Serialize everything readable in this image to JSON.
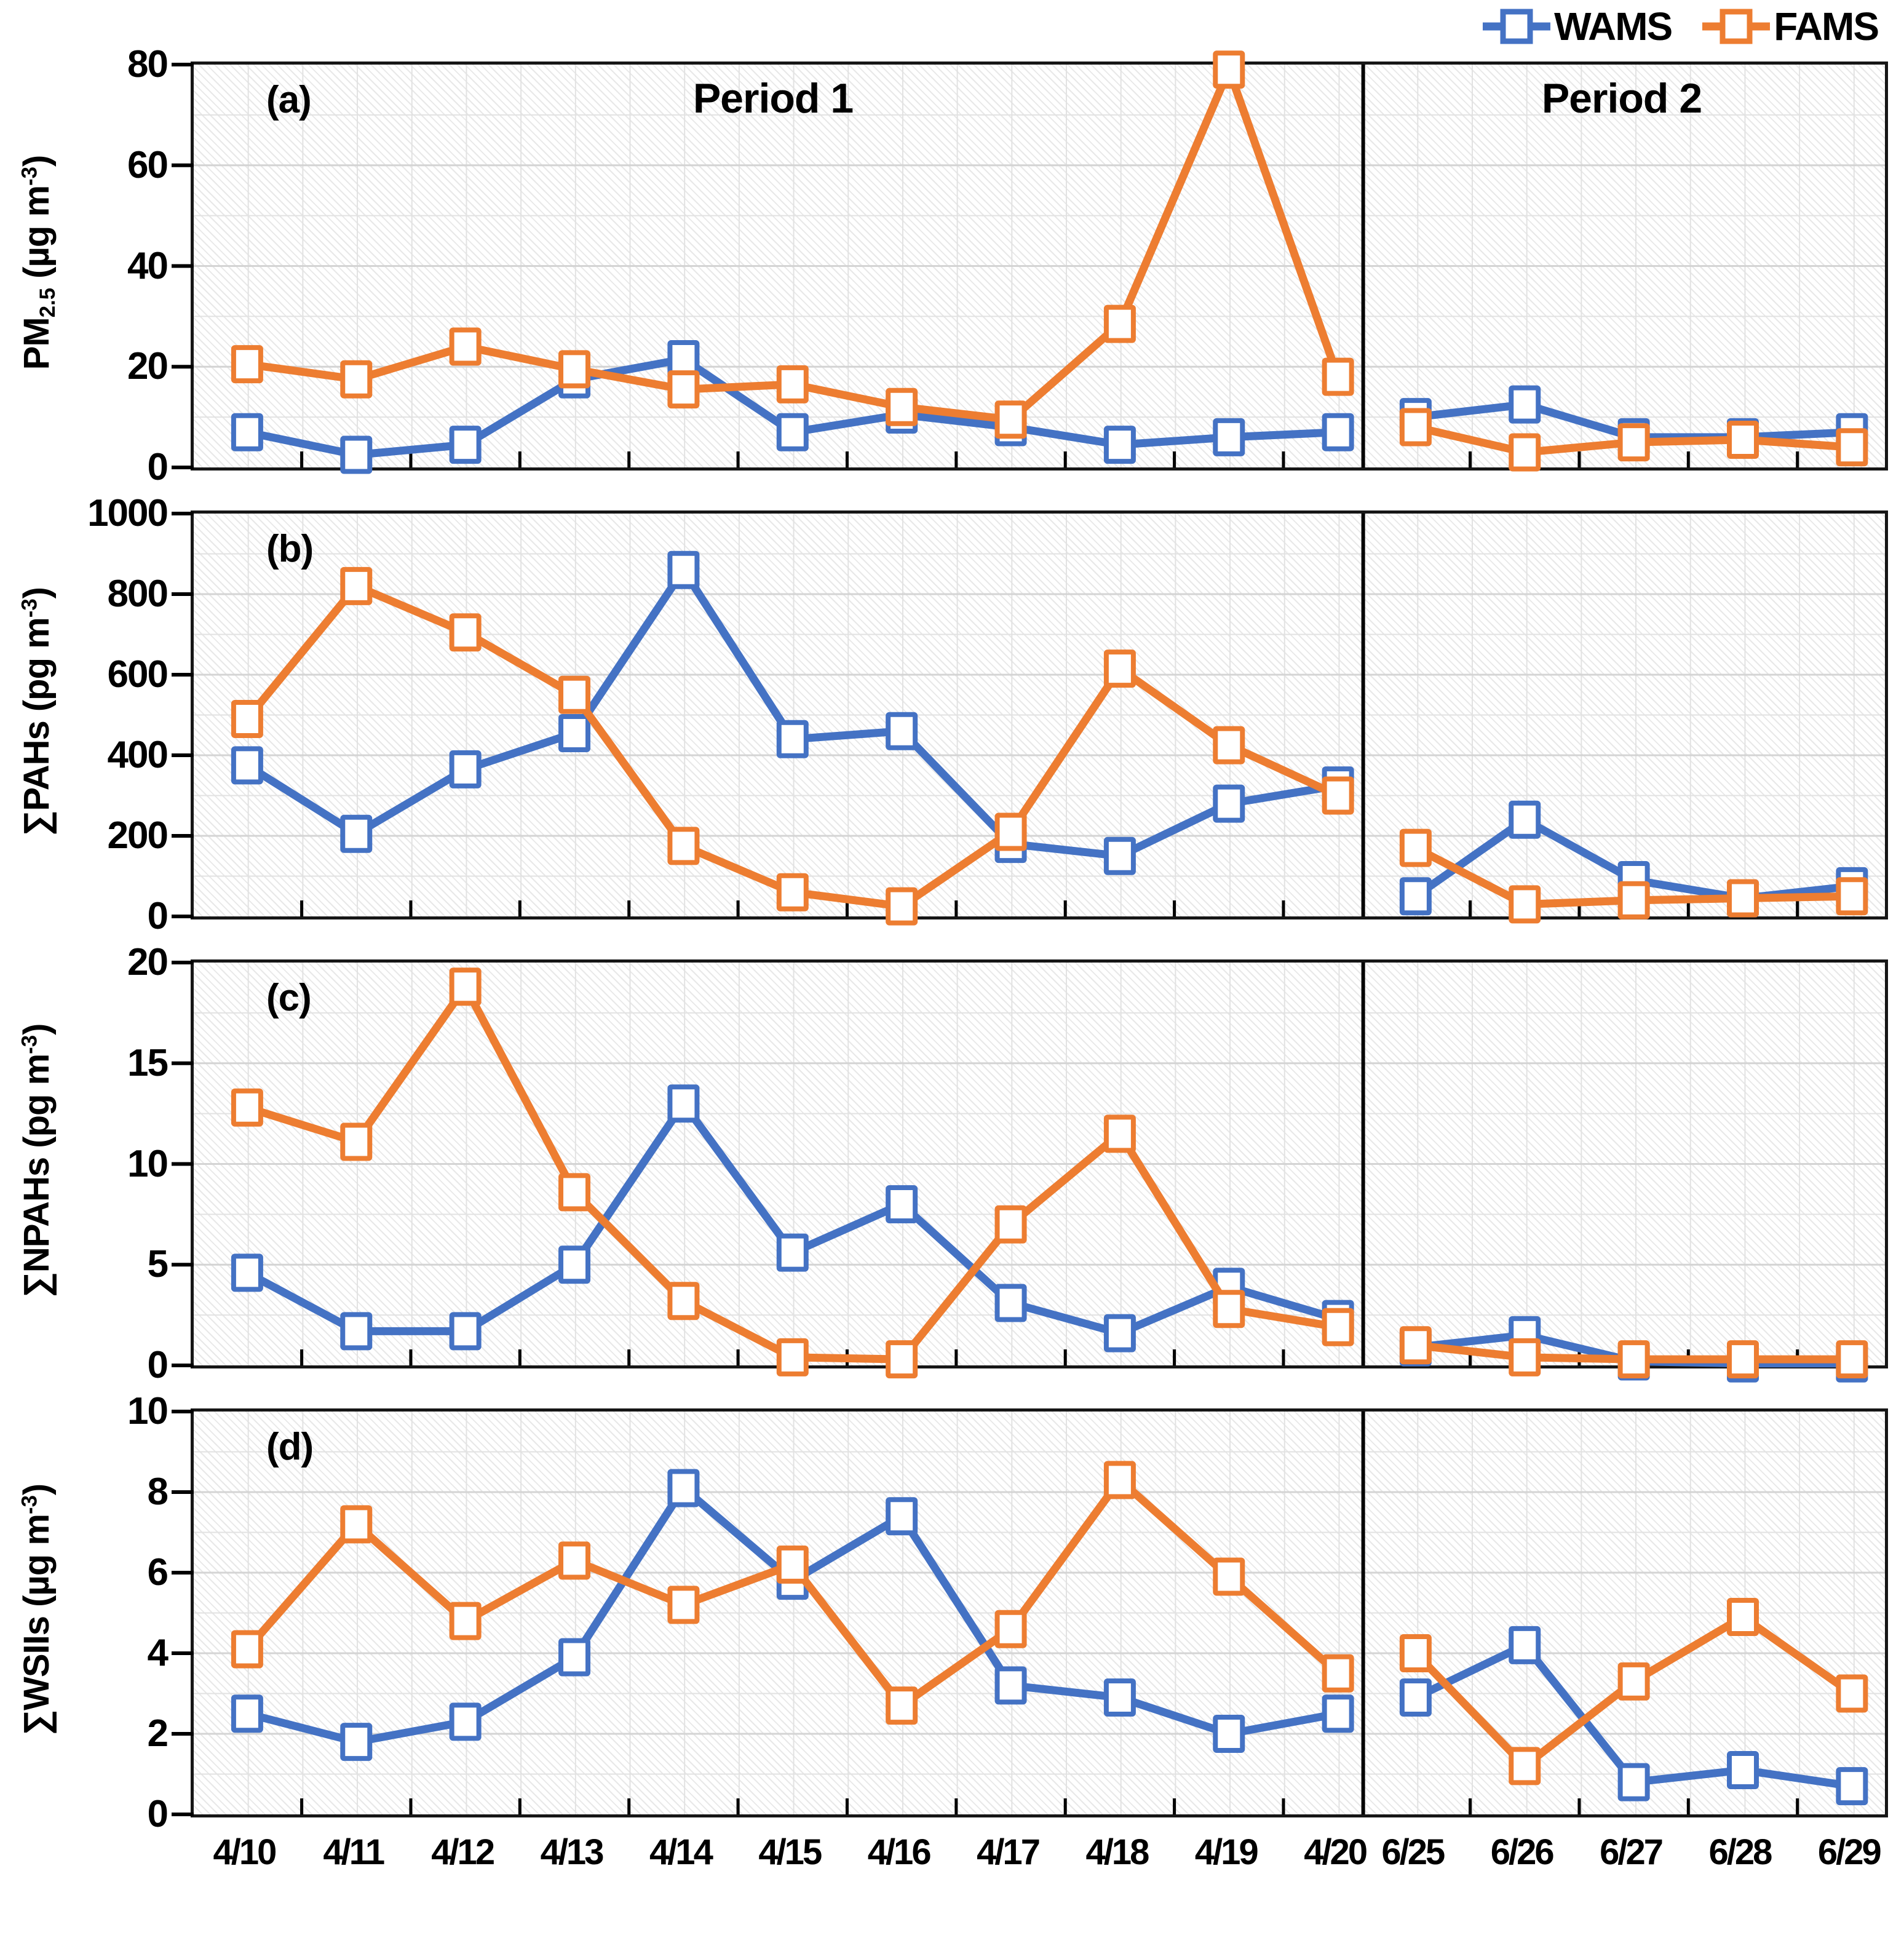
{
  "figure": {
    "type": "multi-panel line chart",
    "period_labels": {
      "period1": "Period 1",
      "period2": "Period 2"
    }
  },
  "colors": {
    "wams": "#4472C4",
    "fams": "#ED7D31",
    "grid_major": "#D4D4D4",
    "grid_minor": "#E2E2E2",
    "axis": "#161616",
    "text": "#000000"
  },
  "legend": {
    "items": [
      {
        "label": "WAMS",
        "series": "wams"
      },
      {
        "label": "FAMS",
        "series": "fams"
      }
    ]
  },
  "chart_data": [
    {
      "type": "line",
      "panel_letter": "(a)",
      "ylabel": "PM2.5 (ug m-3)",
      "ylabel_parts": {
        "main": "PM",
        "sub": "2.5",
        "unit_pre": " (µg m",
        "unit_sup": "-3",
        "unit_post": ")"
      },
      "ylim": [
        0,
        80
      ],
      "yticks": [
        0,
        20,
        40,
        60,
        80
      ],
      "grid": "major+minor",
      "legend_position": "top-right",
      "categories": [
        "4/10",
        "4/11",
        "4/12",
        "4/13",
        "4/14",
        "4/15",
        "4/16",
        "4/17",
        "4/18",
        "4/19",
        "4/20",
        "6/25",
        "6/26",
        "6/27",
        "6/28",
        "6/29"
      ],
      "series": [
        {
          "name": "WAMS",
          "values": [
            7,
            2.5,
            4.5,
            17.5,
            21.5,
            7,
            10.5,
            8,
            4.5,
            6,
            7,
            10,
            12.5,
            6,
            6,
            7
          ]
        },
        {
          "name": "FAMS",
          "values": [
            20.5,
            17.5,
            24,
            19.5,
            15.5,
            16.5,
            12,
            9.5,
            28.5,
            79,
            18,
            8,
            3,
            5,
            5.5,
            4
          ]
        }
      ]
    },
    {
      "type": "line",
      "panel_letter": "(b)",
      "ylabel": "SPAHs (pg m-3)",
      "ylabel_parts": {
        "main": "∑PAHs",
        "sub": "",
        "unit_pre": " (pg m",
        "unit_sup": "-3",
        "unit_post": ")"
      },
      "ylim": [
        0,
        1000
      ],
      "yticks": [
        0,
        200,
        400,
        600,
        800,
        1000
      ],
      "grid": "major+minor",
      "categories": [
        "4/10",
        "4/11",
        "4/12",
        "4/13",
        "4/14",
        "4/15",
        "4/16",
        "4/17",
        "4/18",
        "4/19",
        "4/20",
        "6/25",
        "6/26",
        "6/27",
        "6/28",
        "6/29"
      ],
      "series": [
        {
          "name": "WAMS",
          "values": [
            375,
            205,
            365,
            455,
            860,
            440,
            460,
            180,
            150,
            280,
            325,
            50,
            240,
            90,
            45,
            75
          ]
        },
        {
          "name": "FAMS",
          "values": [
            490,
            820,
            705,
            550,
            175,
            60,
            25,
            210,
            615,
            425,
            300,
            170,
            30,
            40,
            45,
            50
          ]
        }
      ]
    },
    {
      "type": "line",
      "panel_letter": "(c)",
      "ylabel": "SNPAHs (pg m-3)",
      "ylabel_parts": {
        "main": "∑NPAHs",
        "sub": "",
        "unit_pre": " (pg m",
        "unit_sup": "-3",
        "unit_post": ")"
      },
      "ylim": [
        0,
        20
      ],
      "yticks": [
        0,
        5,
        10,
        15,
        20
      ],
      "grid": "major+minor",
      "categories": [
        "4/10",
        "4/11",
        "4/12",
        "4/13",
        "4/14",
        "4/15",
        "4/16",
        "4/17",
        "4/18",
        "4/19",
        "4/20",
        "6/25",
        "6/26",
        "6/27",
        "6/28",
        "6/29"
      ],
      "series": [
        {
          "name": "WAMS",
          "values": [
            4.6,
            1.7,
            1.7,
            5.0,
            13.0,
            5.6,
            8.0,
            3.1,
            1.6,
            3.9,
            2.3,
            0.9,
            1.5,
            0.2,
            0.1,
            0.1
          ]
        },
        {
          "name": "FAMS",
          "values": [
            12.8,
            11.1,
            18.8,
            8.6,
            3.2,
            0.4,
            0.3,
            7.0,
            11.5,
            2.8,
            1.9,
            1.0,
            0.4,
            0.3,
            0.3,
            0.3
          ]
        }
      ]
    },
    {
      "type": "line",
      "panel_letter": "(d)",
      "ylabel": "SWSIIs (ug m-3)",
      "ylabel_parts": {
        "main": "∑WSIIs",
        "sub": "",
        "unit_pre": " (µg m",
        "unit_sup": "-3",
        "unit_post": ")"
      },
      "ylim": [
        0,
        10
      ],
      "yticks": [
        0,
        2,
        4,
        6,
        8,
        10
      ],
      "grid": "major+minor",
      "categories": [
        "4/10",
        "4/11",
        "4/12",
        "4/13",
        "4/14",
        "4/15",
        "4/16",
        "4/17",
        "4/18",
        "4/19",
        "4/20",
        "6/25",
        "6/26",
        "6/27",
        "6/28",
        "6/29"
      ],
      "series": [
        {
          "name": "WAMS",
          "values": [
            2.5,
            1.8,
            2.3,
            3.9,
            8.1,
            5.8,
            7.4,
            3.2,
            2.9,
            2.0,
            2.5,
            2.9,
            4.2,
            0.8,
            1.1,
            0.7
          ]
        },
        {
          "name": "FAMS",
          "values": [
            4.1,
            7.2,
            4.8,
            6.3,
            5.2,
            6.2,
            2.7,
            4.6,
            8.3,
            5.9,
            3.5,
            4.0,
            1.2,
            3.3,
            4.9,
            3.0
          ]
        }
      ]
    }
  ],
  "x_axis": {
    "divider_after_index": 10,
    "labels": [
      "4/10",
      "4/11",
      "4/12",
      "4/13",
      "4/14",
      "4/15",
      "4/16",
      "4/17",
      "4/18",
      "4/19",
      "4/20",
      "6/25",
      "6/26",
      "6/27",
      "6/28",
      "6/29"
    ]
  }
}
